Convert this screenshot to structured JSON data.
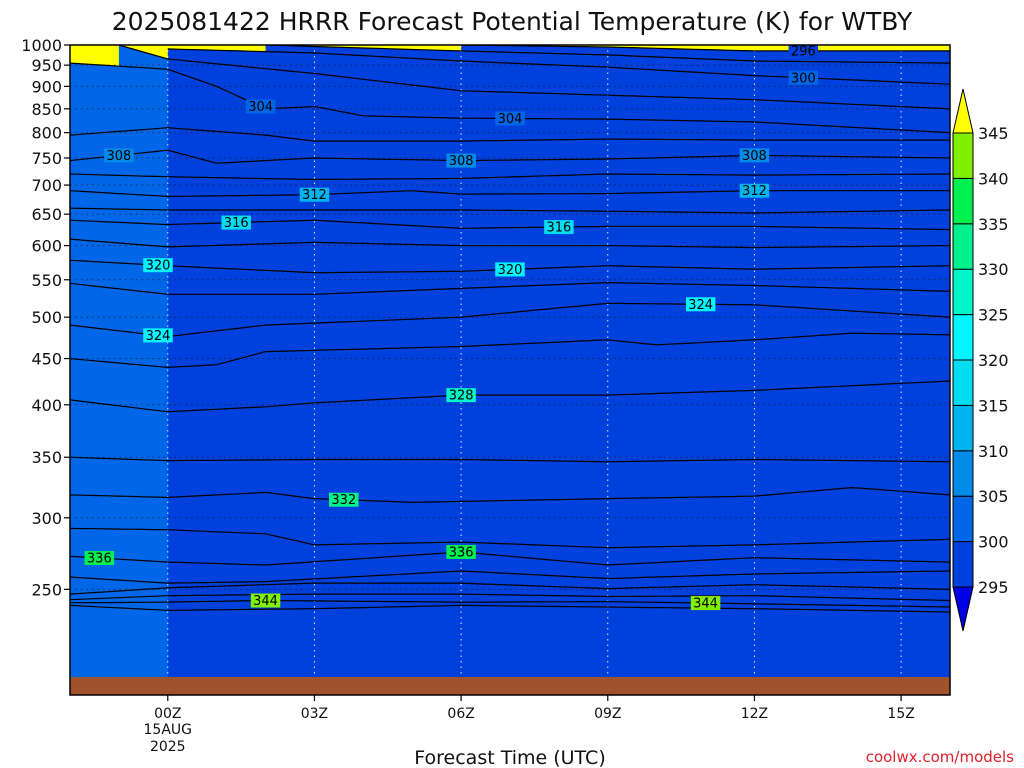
{
  "chart_data": {
    "type": "contour",
    "title": "2025081422 HRRR Forecast Potential Temperature (K) for WTBY",
    "xlabel": "Forecast Time (UTC)",
    "ylabel": "",
    "credit": "coolwx.com/models",
    "x_ticks": [
      {
        "t": 0,
        "label": "00Z",
        "sub1": "15AUG",
        "sub2": "2025"
      },
      {
        "t": 3,
        "label": "03Z"
      },
      {
        "t": 6,
        "label": "06Z"
      },
      {
        "t": 9,
        "label": "09Z"
      },
      {
        "t": 12,
        "label": "12Z"
      },
      {
        "t": 15,
        "label": "15Z"
      }
    ],
    "xlim": [
      -2,
      16
    ],
    "y_scale": "log-pressure (hPa), inverted",
    "ylim": [
      1000,
      200
    ],
    "y_ticks": [
      250,
      300,
      350,
      400,
      450,
      500,
      550,
      600,
      650,
      700,
      750,
      800,
      850,
      900,
      950,
      1000
    ],
    "grid": true,
    "ground_color": "#a0522d",
    "colorbar": {
      "levels": [
        295,
        300,
        305,
        310,
        315,
        320,
        325,
        330,
        335,
        340,
        345
      ],
      "tick_labels": [
        "295",
        "300",
        "305",
        "310",
        "315",
        "320",
        "325",
        "330",
        "335",
        "340",
        "345"
      ],
      "colors": [
        "#0000e6",
        "#0040dc",
        "#0066e8",
        "#008ce8",
        "#00b4f0",
        "#00dcf0",
        "#00f5ff",
        "#00f5c8",
        "#00f08c",
        "#00f050",
        "#80f000",
        "#c0f000",
        "#ffff00"
      ],
      "extend": "both"
    },
    "contour_interval": 2,
    "contour_labels": [
      "344",
      "336",
      "332",
      "328",
      "324",
      "320",
      "316",
      "312",
      "308",
      "304",
      "300",
      "296"
    ],
    "contours": [
      {
        "theta": 346,
        "points": [
          [
            -2,
            240
          ],
          [
            0,
            237
          ],
          [
            3,
            238
          ],
          [
            6,
            240
          ],
          [
            9,
            239
          ],
          [
            12,
            238
          ],
          [
            16,
            236
          ]
        ]
      },
      {
        "theta": 344,
        "points": [
          [
            -2,
            241.6
          ],
          [
            0,
            242
          ],
          [
            2,
            243
          ],
          [
            6,
            242
          ],
          [
            9,
            242.3
          ],
          [
            12,
            241
          ],
          [
            16,
            239
          ]
        ]
      },
      {
        "theta": 342,
        "points": [
          [
            -2,
            243.5
          ],
          [
            0,
            246
          ],
          [
            3,
            247
          ],
          [
            6,
            247
          ],
          [
            9,
            245.5
          ],
          [
            12,
            246
          ],
          [
            16,
            243
          ]
        ]
      },
      {
        "theta": 340,
        "points": [
          [
            -2,
            247
          ],
          [
            0,
            251
          ],
          [
            3,
            254
          ],
          [
            6,
            254
          ],
          [
            9,
            250.5
          ],
          [
            12,
            253
          ],
          [
            16,
            250
          ]
        ]
      },
      {
        "theta": 338,
        "points": [
          [
            -2,
            258
          ],
          [
            0,
            254
          ],
          [
            2,
            255
          ],
          [
            6,
            262
          ],
          [
            9,
            257
          ],
          [
            12,
            260
          ],
          [
            16,
            262
          ]
        ]
      },
      {
        "theta": 336,
        "points": [
          [
            -2,
            272
          ],
          [
            0,
            268
          ],
          [
            2,
            266
          ],
          [
            6,
            275
          ],
          [
            9,
            266
          ],
          [
            12,
            271
          ],
          [
            16,
            268
          ]
        ]
      },
      {
        "theta": 334,
        "points": [
          [
            -2,
            292
          ],
          [
            0,
            291
          ],
          [
            2,
            288
          ],
          [
            3,
            280
          ],
          [
            6,
            282
          ],
          [
            9,
            278
          ],
          [
            12,
            280
          ],
          [
            16,
            284
          ]
        ]
      },
      {
        "theta": 332,
        "points": [
          [
            -2,
            318
          ],
          [
            0,
            316
          ],
          [
            2,
            320
          ],
          [
            3,
            315
          ],
          [
            5,
            312
          ],
          [
            9,
            315
          ],
          [
            12,
            317
          ],
          [
            14,
            324
          ],
          [
            16,
            318
          ]
        ]
      },
      {
        "theta": 330,
        "points": [
          [
            -2,
            350
          ],
          [
            0,
            347
          ],
          [
            3,
            348
          ],
          [
            6,
            348
          ],
          [
            9,
            346
          ],
          [
            12,
            348
          ],
          [
            16,
            346
          ]
        ]
      },
      {
        "theta": 328,
        "points": [
          [
            -2,
            405
          ],
          [
            0,
            393
          ],
          [
            2,
            398
          ],
          [
            3,
            402
          ],
          [
            6,
            410
          ],
          [
            9,
            410
          ],
          [
            12,
            415
          ],
          [
            16,
            425
          ]
        ]
      },
      {
        "theta": 326,
        "points": [
          [
            -2,
            450
          ],
          [
            0,
            440
          ],
          [
            1,
            443
          ],
          [
            2,
            458
          ],
          [
            6,
            464
          ],
          [
            9,
            472
          ],
          [
            10,
            466
          ],
          [
            12,
            472
          ],
          [
            14,
            480
          ],
          [
            16,
            478
          ]
        ]
      },
      {
        "theta": 324,
        "points": [
          [
            -2,
            490
          ],
          [
            0,
            476
          ],
          [
            2,
            490
          ],
          [
            6,
            500
          ],
          [
            9,
            518
          ],
          [
            12,
            516
          ],
          [
            16,
            500
          ]
        ]
      },
      {
        "theta": 322,
        "points": [
          [
            -2,
            545
          ],
          [
            0,
            530
          ],
          [
            3,
            530
          ],
          [
            6,
            538
          ],
          [
            9,
            546
          ],
          [
            12,
            542
          ],
          [
            16,
            534
          ]
        ]
      },
      {
        "theta": 320,
        "points": [
          [
            -2,
            578
          ],
          [
            0,
            570
          ],
          [
            3,
            560
          ],
          [
            6,
            562
          ],
          [
            9,
            570
          ],
          [
            12,
            565
          ],
          [
            16,
            570
          ]
        ]
      },
      {
        "theta": 318,
        "points": [
          [
            -2,
            610
          ],
          [
            0,
            598
          ],
          [
            3,
            605
          ],
          [
            6,
            600
          ],
          [
            9,
            600
          ],
          [
            12,
            597
          ],
          [
            16,
            600
          ]
        ]
      },
      {
        "theta": 316,
        "points": [
          [
            -2,
            640
          ],
          [
            0,
            633
          ],
          [
            3,
            640
          ],
          [
            6,
            627
          ],
          [
            9,
            630
          ],
          [
            12,
            630
          ],
          [
            16,
            625
          ]
        ]
      },
      {
        "theta": 314,
        "points": [
          [
            -2,
            660
          ],
          [
            0,
            657
          ],
          [
            3,
            657
          ],
          [
            6,
            657
          ],
          [
            9,
            655
          ],
          [
            12,
            652
          ],
          [
            16,
            657
          ]
        ]
      },
      {
        "theta": 312,
        "points": [
          [
            -2,
            690
          ],
          [
            0,
            680
          ],
          [
            3,
            683
          ],
          [
            5,
            690
          ],
          [
            6,
            684
          ],
          [
            9,
            685
          ],
          [
            12,
            690
          ],
          [
            16,
            690
          ]
        ]
      },
      {
        "theta": 310,
        "points": [
          [
            -2,
            720
          ],
          [
            0,
            715
          ],
          [
            3,
            710
          ],
          [
            6,
            712
          ],
          [
            9,
            720
          ],
          [
            12,
            718
          ],
          [
            16,
            720
          ]
        ]
      },
      {
        "theta": 308,
        "points": [
          [
            -2,
            745
          ],
          [
            0,
            765
          ],
          [
            1,
            740
          ],
          [
            3,
            750
          ],
          [
            6,
            745
          ],
          [
            9,
            748
          ],
          [
            12,
            755
          ],
          [
            16,
            750
          ]
        ]
      },
      {
        "theta": 306,
        "points": [
          [
            -2,
            795
          ],
          [
            0,
            810
          ],
          [
            2,
            795
          ],
          [
            3,
            783
          ],
          [
            6,
            783
          ],
          [
            9,
            787
          ],
          [
            12,
            785
          ],
          [
            16,
            785
          ]
        ]
      },
      {
        "theta": 304,
        "points": [
          [
            -2,
            955
          ],
          [
            0,
            940
          ],
          [
            1,
            900
          ],
          [
            2,
            850
          ],
          [
            3,
            855
          ],
          [
            4,
            835
          ],
          [
            6,
            830
          ],
          [
            9,
            828
          ],
          [
            12,
            822
          ],
          [
            16,
            800
          ]
        ]
      },
      {
        "theta": 302,
        "points": [
          [
            -1,
            1000
          ],
          [
            0,
            965
          ],
          [
            3,
            930
          ],
          [
            6,
            890
          ],
          [
            9,
            880
          ],
          [
            12,
            870
          ],
          [
            16,
            850
          ]
        ]
      },
      {
        "theta": 300,
        "points": [
          [
            0,
            990
          ],
          [
            3,
            980
          ],
          [
            6,
            960
          ],
          [
            9,
            945
          ],
          [
            12,
            925
          ],
          [
            16,
            905
          ]
        ]
      },
      {
        "theta": 298,
        "points": [
          [
            2,
            1000
          ],
          [
            6,
            985
          ],
          [
            9,
            975
          ],
          [
            12,
            960
          ],
          [
            16,
            955
          ]
        ]
      },
      {
        "theta": 296,
        "points": [
          [
            6,
            1000
          ],
          [
            9,
            995
          ],
          [
            12,
            985
          ],
          [
            16,
            985
          ]
        ]
      }
    ]
  }
}
